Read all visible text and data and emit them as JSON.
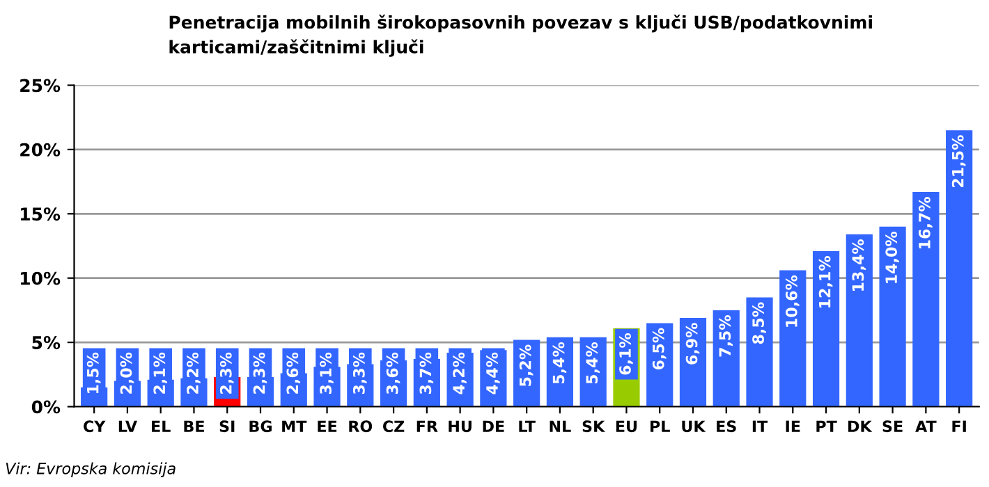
{
  "chart_data": {
    "type": "bar",
    "title": "Penetracija mobilnih širokopasovnih povezav s ključi USB/podatkovnimi\nkarticami/zaščitnimi ključi",
    "categories": [
      "CY",
      "LV",
      "EL",
      "BE",
      "SI",
      "BG",
      "MT",
      "EE",
      "RO",
      "CZ",
      "FR",
      "HU",
      "DE",
      "LT",
      "NL",
      "SK",
      "EU",
      "PL",
      "UK",
      "ES",
      "IT",
      "IE",
      "PT",
      "DK",
      "SE",
      "AT",
      "FI"
    ],
    "values": [
      1.5,
      2.0,
      2.1,
      2.2,
      2.3,
      2.3,
      2.6,
      3.1,
      3.3,
      3.6,
      3.7,
      4.2,
      4.4,
      5.2,
      5.4,
      5.4,
      6.1,
      6.5,
      6.9,
      7.5,
      8.5,
      10.6,
      12.1,
      13.4,
      14.0,
      16.7,
      21.5
    ],
    "value_labels": [
      "1,5%",
      "2,0%",
      "2,1%",
      "2,2%",
      "2,3%",
      "2,3%",
      "2,6%",
      "3,1%",
      "3,3%",
      "3,6%",
      "3,7%",
      "4,2%",
      "4,4%",
      "5,2%",
      "5,4%",
      "5,4%",
      "6,1%",
      "6,5%",
      "6,9%",
      "7,5%",
      "8,5%",
      "10,6%",
      "12,1%",
      "13,4%",
      "14,0%",
      "16,7%",
      "21,5%"
    ],
    "color": "#3366ff",
    "colors": [
      "#3366ff",
      "#3366ff",
      "#3366ff",
      "#3366ff",
      "#ff0000",
      "#3366ff",
      "#3366ff",
      "#3366ff",
      "#3366ff",
      "#3366ff",
      "#3366ff",
      "#3366ff",
      "#3366ff",
      "#3366ff",
      "#3366ff",
      "#3366ff",
      "#99cc00",
      "#3366ff",
      "#3366ff",
      "#3366ff",
      "#3366ff",
      "#3366ff",
      "#3366ff",
      "#3366ff",
      "#3366ff",
      "#3366ff",
      "#3366ff"
    ],
    "ylim": [
      0,
      25
    ],
    "yticks": [
      {
        "value": 0,
        "label": "0%"
      },
      {
        "value": 5,
        "label": "5%"
      },
      {
        "value": 10,
        "label": "10%"
      },
      {
        "value": 15,
        "label": "15%"
      },
      {
        "value": 20,
        "label": "20%"
      },
      {
        "value": 25,
        "label": "25%"
      }
    ],
    "grid": "y",
    "legend": false,
    "annotations": [
      "Vir: Evropska komisija"
    ]
  }
}
